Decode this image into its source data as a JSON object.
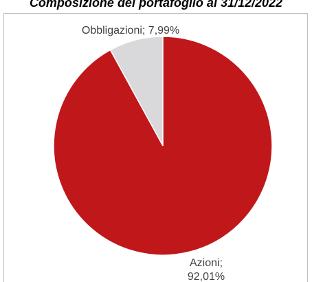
{
  "chart_data": {
    "type": "pie",
    "title": "Composizione del portafoglio al 31/12/2022",
    "slices": [
      {
        "name": "Obbligazioni",
        "value": 7.99,
        "label": "Obbligazioni; 7,99%",
        "color": "#d9d9db"
      },
      {
        "name": "Azioni",
        "value": 92.01,
        "label_lines": [
          "Azioni;",
          "92,01%"
        ],
        "color": "#c0171b"
      }
    ],
    "legend": "none",
    "start_angle": "12-o'clock",
    "direction": "counterclockwise"
  }
}
